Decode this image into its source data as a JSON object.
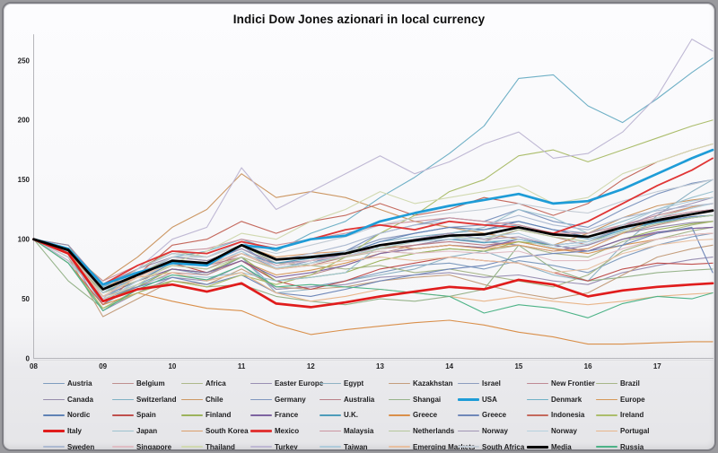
{
  "frame": {
    "outer_bg": "#9a9a9e",
    "border": "#7e7e84",
    "window_bg_top": "#fcfcfe",
    "window_bg_bottom": "#e5e5e8"
  },
  "chart_data": {
    "type": "line",
    "title": "Indici Dow Jones azionari in local currency",
    "xlabel": "",
    "ylabel": "",
    "grid": false,
    "legend_position": "bottom",
    "x_tick_labels": [
      "08",
      "09",
      "10",
      "11",
      "12",
      "13",
      "14",
      "15",
      "16",
      "17"
    ],
    "y_ticks": [
      0,
      50,
      100,
      150,
      200,
      250
    ],
    "ylim": [
      0,
      272
    ],
    "xlim": [
      2008,
      2017.9
    ],
    "x": [
      2008,
      2008.5,
      2009,
      2009.5,
      2010,
      2010.5,
      2011,
      2011.5,
      2012,
      2012.5,
      2013,
      2013.5,
      2014,
      2014.5,
      2015,
      2015.5,
      2016,
      2016.5,
      2017,
      2017.5,
      2017.8
    ],
    "series": [
      {
        "name": "Austria",
        "color": "#7f9cbf",
        "values": [
          100,
          88,
          45,
          62,
          75,
          70,
          85,
          58,
          60,
          65,
          72,
          78,
          80,
          75,
          82,
          78,
          72,
          85,
          95,
          102,
          105
        ]
      },
      {
        "name": "Belgium",
        "color": "#bf8f8f",
        "values": [
          100,
          90,
          52,
          60,
          72,
          70,
          82,
          65,
          70,
          78,
          88,
          95,
          100,
          98,
          108,
          102,
          95,
          105,
          112,
          118,
          120
        ]
      },
      {
        "name": "Africa",
        "color": "#adb88a",
        "values": [
          100,
          85,
          55,
          70,
          85,
          82,
          92,
          78,
          82,
          85,
          90,
          88,
          92,
          90,
          95,
          88,
          85,
          98,
          105,
          112,
          115
        ]
      },
      {
        "name": "Easter Europe",
        "color": "#998fb3",
        "values": [
          100,
          88,
          40,
          55,
          68,
          65,
          78,
          58,
          60,
          62,
          68,
          70,
          72,
          68,
          70,
          65,
          62,
          72,
          78,
          83,
          85
        ]
      },
      {
        "name": "Egypt",
        "color": "#8fb3c4",
        "values": [
          100,
          90,
          48,
          60,
          75,
          72,
          85,
          55,
          58,
          65,
          70,
          75,
          85,
          90,
          80,
          70,
          65,
          95,
          120,
          140,
          150
        ]
      },
      {
        "name": "Kazakhstan",
        "color": "#c49e7d",
        "values": [
          100,
          85,
          35,
          50,
          65,
          62,
          75,
          60,
          58,
          60,
          65,
          68,
          70,
          62,
          55,
          50,
          55,
          70,
          85,
          92,
          95
        ]
      },
      {
        "name": "Israel",
        "color": "#8c9cbf",
        "values": [
          100,
          92,
          60,
          75,
          88,
          85,
          95,
          82,
          85,
          90,
          100,
          105,
          110,
          112,
          115,
          108,
          105,
          112,
          118,
          123,
          125
        ]
      },
      {
        "name": "New Frontier",
        "color": "#bf8a94",
        "values": [
          100,
          90,
          55,
          65,
          78,
          75,
          88,
          75,
          80,
          85,
          95,
          100,
          105,
          108,
          112,
          105,
          102,
          112,
          120,
          127,
          130
        ]
      },
      {
        "name": "Brazil",
        "color": "#a6b688",
        "values": [
          100,
          95,
          55,
          75,
          90,
          85,
          95,
          80,
          78,
          75,
          78,
          72,
          75,
          70,
          65,
          60,
          70,
          90,
          100,
          107,
          110
        ]
      },
      {
        "name": "Canada",
        "color": "#968bab",
        "values": [
          100,
          95,
          62,
          75,
          85,
          82,
          92,
          80,
          82,
          85,
          92,
          95,
          100,
          98,
          95,
          90,
          95,
          105,
          110,
          114,
          115
        ]
      },
      {
        "name": "Switzerland",
        "color": "#7fb0c4",
        "values": [
          100,
          90,
          60,
          70,
          82,
          80,
          88,
          78,
          82,
          88,
          98,
          102,
          105,
          108,
          112,
          105,
          100,
          108,
          115,
          119,
          120
        ]
      },
      {
        "name": "Chile",
        "color": "#cc9763",
        "values": [
          100,
          90,
          65,
          85,
          110,
          125,
          155,
          135,
          140,
          135,
          125,
          115,
          110,
          105,
          100,
          95,
          105,
          118,
          128,
          133,
          135
        ]
      },
      {
        "name": "Germany",
        "color": "#7f96bf",
        "values": [
          100,
          88,
          55,
          68,
          82,
          80,
          95,
          75,
          82,
          90,
          105,
          112,
          118,
          115,
          125,
          115,
          110,
          125,
          138,
          147,
          150
        ]
      },
      {
        "name": "Australia",
        "color": "#ba7f87",
        "values": [
          100,
          85,
          58,
          70,
          82,
          78,
          85,
          75,
          78,
          85,
          92,
          95,
          98,
          95,
          98,
          92,
          90,
          100,
          105,
          109,
          110
        ]
      },
      {
        "name": "Shangai",
        "color": "#96b38a",
        "values": [
          100,
          65,
          42,
          58,
          65,
          60,
          62,
          52,
          48,
          45,
          50,
          48,
          52,
          58,
          95,
          75,
          65,
          68,
          72,
          74,
          75
        ]
      },
      {
        "name": "USA",
        "color": "#1e9cd7",
        "bold": true,
        "values": [
          100,
          92,
          62,
          72,
          80,
          78,
          95,
          92,
          100,
          103,
          115,
          122,
          128,
          133,
          138,
          130,
          132,
          142,
          155,
          168,
          175
        ]
      },
      {
        "name": "Denmark",
        "color": "#6fb0c6",
        "values": [
          100,
          88,
          55,
          68,
          85,
          90,
          100,
          90,
          105,
          115,
          135,
          152,
          172,
          195,
          235,
          238,
          212,
          198,
          218,
          240,
          252
        ]
      },
      {
        "name": "Europe",
        "color": "#d69757",
        "values": [
          100,
          88,
          55,
          65,
          75,
          72,
          82,
          70,
          74,
          80,
          88,
          92,
          95,
          93,
          98,
          92,
          88,
          95,
          100,
          104,
          105
        ]
      },
      {
        "name": "Nordic",
        "color": "#5f82b5",
        "values": [
          100,
          88,
          52,
          65,
          80,
          78,
          90,
          75,
          80,
          88,
          98,
          105,
          110,
          108,
          115,
          108,
          102,
          110,
          115,
          119,
          120
        ]
      },
      {
        "name": "Spain",
        "color": "#bf4f4d",
        "values": [
          100,
          88,
          58,
          72,
          80,
          72,
          82,
          65,
          58,
          65,
          75,
          80,
          85,
          82,
          80,
          72,
          65,
          75,
          80,
          79,
          80
        ]
      },
      {
        "name": "Finland",
        "color": "#9cb35c",
        "values": [
          100,
          85,
          48,
          60,
          75,
          72,
          85,
          65,
          68,
          72,
          82,
          88,
          92,
          90,
          98,
          95,
          90,
          100,
          108,
          113,
          115
        ]
      },
      {
        "name": "France",
        "color": "#7d63a1",
        "values": [
          100,
          88,
          55,
          65,
          75,
          72,
          82,
          68,
          72,
          78,
          88,
          92,
          95,
          93,
          100,
          95,
          90,
          100,
          106,
          109,
          110
        ]
      },
      {
        "name": "U.K.",
        "color": "#4d9cba",
        "values": [
          100,
          90,
          58,
          70,
          80,
          78,
          88,
          80,
          84,
          88,
          95,
          98,
          100,
          97,
          100,
          95,
          98,
          108,
          114,
          118,
          120
        ]
      },
      {
        "name": "Greece",
        "color": "#d98f4a",
        "values": [
          100,
          80,
          45,
          55,
          48,
          42,
          40,
          28,
          20,
          24,
          27,
          30,
          32,
          28,
          22,
          18,
          12,
          12,
          13,
          14,
          14
        ]
      },
      {
        "name": "Greece",
        "color": "#6f87b8",
        "values": [
          100,
          85,
          50,
          60,
          68,
          62,
          70,
          55,
          52,
          58,
          65,
          70,
          75,
          78,
          85,
          88,
          90,
          95,
          105,
          110,
          72
        ]
      },
      {
        "name": "Indonesia",
        "color": "#c4685c",
        "values": [
          100,
          80,
          45,
          70,
          95,
          100,
          115,
          105,
          115,
          120,
          130,
          120,
          125,
          135,
          130,
          120,
          130,
          150,
          165,
          175,
          180
        ]
      },
      {
        "name": "Ireland",
        "color": "#abbd6b",
        "values": [
          100,
          80,
          42,
          55,
          65,
          60,
          70,
          62,
          70,
          85,
          105,
          120,
          140,
          150,
          170,
          175,
          165,
          175,
          185,
          195,
          200
        ]
      },
      {
        "name": "Italy",
        "color": "#e01c1c",
        "bold": true,
        "values": [
          100,
          88,
          48,
          58,
          62,
          56,
          63,
          46,
          43,
          47,
          52,
          56,
          60,
          58,
          66,
          62,
          52,
          57,
          60,
          62,
          63
        ]
      },
      {
        "name": "Japan",
        "color": "#9cc2cf",
        "values": [
          100,
          82,
          52,
          62,
          70,
          68,
          72,
          65,
          68,
          72,
          95,
          100,
          105,
          110,
          125,
          118,
          105,
          115,
          125,
          135,
          140
        ]
      },
      {
        "name": "South Korea",
        "color": "#db9e6b",
        "values": [
          100,
          85,
          58,
          75,
          88,
          85,
          95,
          85,
          88,
          90,
          95,
          92,
          95,
          92,
          95,
          90,
          92,
          105,
          118,
          127,
          130
        ]
      },
      {
        "name": "Mexico",
        "color": "#e03535",
        "semibold": true,
        "values": [
          100,
          92,
          62,
          78,
          90,
          88,
          98,
          92,
          100,
          108,
          112,
          108,
          115,
          112,
          110,
          105,
          115,
          130,
          145,
          158,
          168
        ]
      },
      {
        "name": "Malaysia",
        "color": "#cc96a1",
        "values": [
          100,
          88,
          65,
          78,
          90,
          92,
          100,
          95,
          100,
          105,
          112,
          115,
          118,
          115,
          112,
          105,
          105,
          112,
          118,
          123,
          125
        ]
      },
      {
        "name": "Netherlands",
        "color": "#b5c79c",
        "values": [
          100,
          88,
          55,
          65,
          78,
          75,
          85,
          75,
          80,
          85,
          92,
          98,
          102,
          100,
          108,
          102,
          98,
          106,
          113,
          118,
          120
        ]
      },
      {
        "name": "Norway",
        "color": "#a195b5",
        "values": [
          100,
          88,
          48,
          65,
          82,
          80,
          92,
          78,
          82,
          88,
          95,
          100,
          105,
          100,
          102,
          95,
          98,
          110,
          122,
          130,
          135
        ]
      },
      {
        "name": "Norway",
        "color": "#b5d1de",
        "values": [
          100,
          88,
          48,
          65,
          82,
          78,
          90,
          76,
          80,
          86,
          93,
          98,
          102,
          98,
          100,
          93,
          96,
          107,
          118,
          126,
          130
        ]
      },
      {
        "name": "Portugal",
        "color": "#e8b58a",
        "values": [
          100,
          88,
          58,
          68,
          72,
          65,
          72,
          55,
          48,
          52,
          58,
          55,
          52,
          48,
          52,
          48,
          45,
          48,
          52,
          54,
          55
        ]
      },
      {
        "name": "Sweden",
        "color": "#adbad1",
        "values": [
          100,
          85,
          52,
          68,
          85,
          85,
          98,
          82,
          88,
          95,
          105,
          112,
          115,
          112,
          120,
          112,
          108,
          118,
          124,
          128,
          130
        ]
      },
      {
        "name": "Singapore",
        "color": "#e0bdc4",
        "values": [
          100,
          85,
          52,
          68,
          82,
          80,
          88,
          78,
          82,
          86,
          90,
          88,
          90,
          88,
          90,
          82,
          82,
          92,
          100,
          104,
          105
        ]
      },
      {
        "name": "Thailand",
        "color": "#d1d9b0",
        "values": [
          100,
          82,
          50,
          62,
          80,
          90,
          105,
          100,
          115,
          125,
          140,
          130,
          135,
          140,
          145,
          130,
          135,
          155,
          165,
          175,
          180
        ]
      },
      {
        "name": "Turkey",
        "color": "#bfb8d4",
        "values": [
          100,
          82,
          50,
          75,
          100,
          110,
          160,
          125,
          140,
          155,
          170,
          155,
          165,
          180,
          190,
          168,
          172,
          190,
          220,
          268,
          258
        ]
      },
      {
        "name": "Taiwan",
        "color": "#b0ccdb",
        "values": [
          100,
          80,
          55,
          75,
          88,
          85,
          98,
          82,
          86,
          90,
          95,
          98,
          100,
          102,
          105,
          95,
          98,
          112,
          125,
          132,
          135
        ]
      },
      {
        "name": "Emerging Markets",
        "color": "#e8c0a1",
        "values": [
          100,
          88,
          52,
          68,
          80,
          78,
          88,
          75,
          78,
          82,
          85,
          82,
          85,
          82,
          80,
          72,
          75,
          88,
          95,
          99,
          100
        ]
      },
      {
        "name": "South Africa",
        "color": "#c2cbd4",
        "values": [
          100,
          85,
          58,
          72,
          85,
          85,
          95,
          88,
          95,
          102,
          112,
          118,
          122,
          125,
          130,
          125,
          122,
          132,
          140,
          146,
          150
        ]
      },
      {
        "name": "Media",
        "color": "#000000",
        "bold": true,
        "values": [
          100,
          91,
          58,
          70,
          82,
          80,
          95,
          83,
          85,
          88,
          95,
          99,
          103,
          104,
          110,
          104,
          102,
          110,
          116,
          121,
          124
        ]
      },
      {
        "name": "Russia",
        "color": "#4db387",
        "values": [
          100,
          80,
          40,
          58,
          70,
          66,
          78,
          60,
          62,
          60,
          58,
          55,
          52,
          38,
          45,
          42,
          34,
          46,
          52,
          50,
          55
        ]
      }
    ]
  }
}
